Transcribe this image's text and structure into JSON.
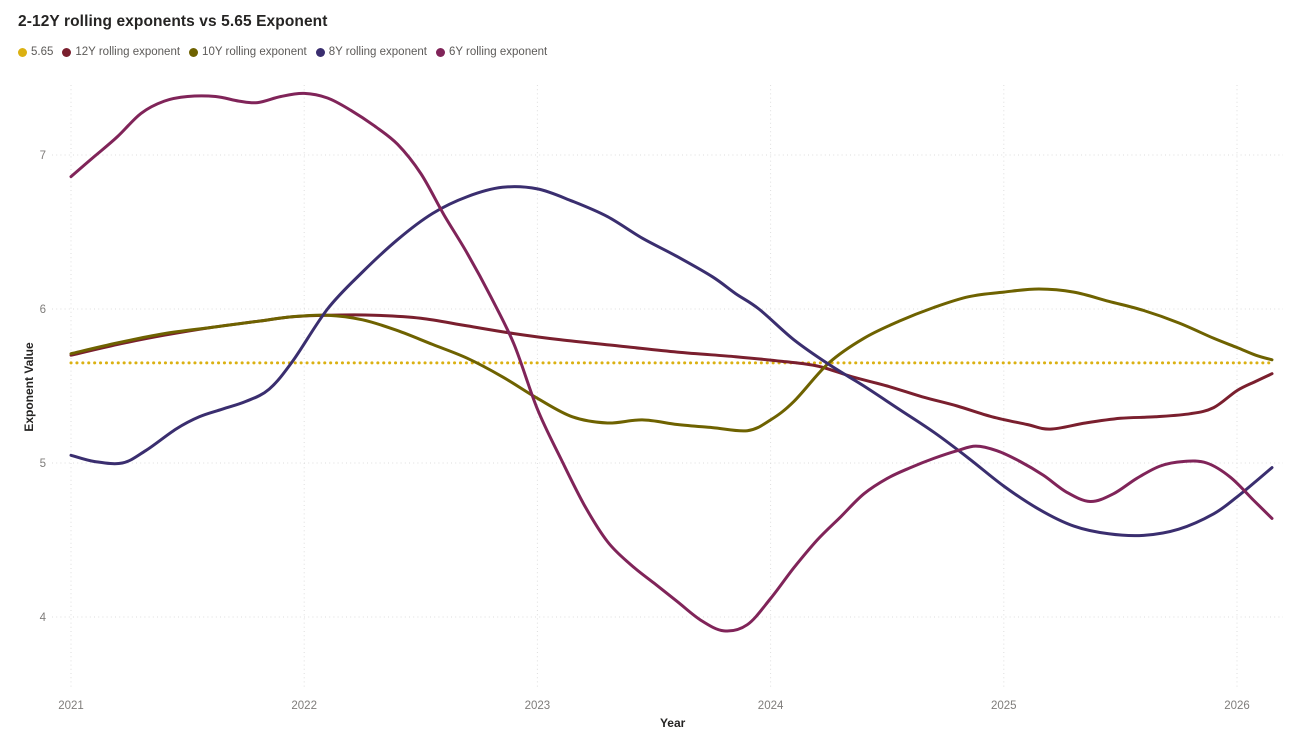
{
  "chart": {
    "title": "2-12Y rolling exponents vs 5.65 Exponent",
    "x_axis_title": "Year",
    "y_axis_title": "Exponent Value"
  },
  "chart_data": {
    "type": "line",
    "title": "2-12Y rolling exponents vs 5.65 Exponent",
    "xlabel": "Year",
    "ylabel": "Exponent Value",
    "xlim": [
      2021,
      2026.15
    ],
    "ylim": [
      3.54,
      7.45
    ],
    "x_ticks": [
      2021,
      2022,
      2023,
      2024,
      2025,
      2026
    ],
    "y_ticks": [
      4,
      5,
      6,
      7
    ],
    "grid": "dotted",
    "legend_position": "top-left",
    "series": [
      {
        "name": "5.65",
        "color": "#DBB112",
        "line_style": "dotted",
        "points": [
          [
            2021.0,
            5.65
          ],
          [
            2026.15,
            5.65
          ]
        ]
      },
      {
        "name": "12Y rolling exponent",
        "color": "#7A1F2E",
        "line_style": "solid",
        "points": [
          [
            2021.0,
            5.7
          ],
          [
            2021.2,
            5.77
          ],
          [
            2021.4,
            5.83
          ],
          [
            2021.6,
            5.88
          ],
          [
            2021.8,
            5.92
          ],
          [
            2021.95,
            5.95
          ],
          [
            2022.1,
            5.96
          ],
          [
            2022.3,
            5.96
          ],
          [
            2022.5,
            5.94
          ],
          [
            2022.7,
            5.89
          ],
          [
            2022.9,
            5.84
          ],
          [
            2023.1,
            5.8
          ],
          [
            2023.35,
            5.76
          ],
          [
            2023.6,
            5.72
          ],
          [
            2023.85,
            5.69
          ],
          [
            2024.05,
            5.66
          ],
          [
            2024.2,
            5.63
          ],
          [
            2024.35,
            5.56
          ],
          [
            2024.5,
            5.5
          ],
          [
            2024.65,
            5.43
          ],
          [
            2024.8,
            5.37
          ],
          [
            2024.95,
            5.3
          ],
          [
            2025.1,
            5.25
          ],
          [
            2025.2,
            5.22
          ],
          [
            2025.35,
            5.26
          ],
          [
            2025.5,
            5.29
          ],
          [
            2025.65,
            5.3
          ],
          [
            2025.8,
            5.32
          ],
          [
            2025.9,
            5.36
          ],
          [
            2026.0,
            5.47
          ],
          [
            2026.08,
            5.53
          ],
          [
            2026.15,
            5.58
          ]
        ]
      },
      {
        "name": "10Y rolling exponent",
        "color": "#6E6200",
        "line_style": "solid",
        "points": [
          [
            2021.0,
            5.71
          ],
          [
            2021.2,
            5.78
          ],
          [
            2021.4,
            5.84
          ],
          [
            2021.6,
            5.88
          ],
          [
            2021.8,
            5.92
          ],
          [
            2021.95,
            5.95
          ],
          [
            2022.1,
            5.96
          ],
          [
            2022.25,
            5.93
          ],
          [
            2022.4,
            5.86
          ],
          [
            2022.55,
            5.77
          ],
          [
            2022.7,
            5.68
          ],
          [
            2022.85,
            5.56
          ],
          [
            2023.0,
            5.42
          ],
          [
            2023.15,
            5.3
          ],
          [
            2023.3,
            5.26
          ],
          [
            2023.45,
            5.28
          ],
          [
            2023.6,
            5.25
          ],
          [
            2023.75,
            5.23
          ],
          [
            2023.9,
            5.21
          ],
          [
            2024.0,
            5.28
          ],
          [
            2024.1,
            5.4
          ],
          [
            2024.25,
            5.65
          ],
          [
            2024.4,
            5.81
          ],
          [
            2024.55,
            5.92
          ],
          [
            2024.7,
            6.01
          ],
          [
            2024.85,
            6.08
          ],
          [
            2025.0,
            6.11
          ],
          [
            2025.15,
            6.13
          ],
          [
            2025.3,
            6.11
          ],
          [
            2025.45,
            6.05
          ],
          [
            2025.6,
            5.99
          ],
          [
            2025.75,
            5.91
          ],
          [
            2025.9,
            5.81
          ],
          [
            2026.0,
            5.75
          ],
          [
            2026.08,
            5.7
          ],
          [
            2026.15,
            5.67
          ]
        ]
      },
      {
        "name": "8Y rolling exponent",
        "color": "#3A2E6F",
        "line_style": "solid",
        "points": [
          [
            2021.0,
            5.05
          ],
          [
            2021.1,
            5.01
          ],
          [
            2021.22,
            5.0
          ],
          [
            2021.32,
            5.08
          ],
          [
            2021.45,
            5.22
          ],
          [
            2021.55,
            5.3
          ],
          [
            2021.65,
            5.35
          ],
          [
            2021.75,
            5.4
          ],
          [
            2021.85,
            5.48
          ],
          [
            2021.95,
            5.66
          ],
          [
            2022.1,
            6.0
          ],
          [
            2022.25,
            6.24
          ],
          [
            2022.4,
            6.45
          ],
          [
            2022.55,
            6.62
          ],
          [
            2022.7,
            6.73
          ],
          [
            2022.85,
            6.79
          ],
          [
            2023.0,
            6.78
          ],
          [
            2023.15,
            6.7
          ],
          [
            2023.3,
            6.6
          ],
          [
            2023.45,
            6.46
          ],
          [
            2023.6,
            6.34
          ],
          [
            2023.75,
            6.21
          ],
          [
            2023.85,
            6.1
          ],
          [
            2023.95,
            6.0
          ],
          [
            2024.1,
            5.8
          ],
          [
            2024.25,
            5.64
          ],
          [
            2024.4,
            5.5
          ],
          [
            2024.55,
            5.35
          ],
          [
            2024.7,
            5.2
          ],
          [
            2024.85,
            5.03
          ],
          [
            2025.0,
            4.85
          ],
          [
            2025.15,
            4.7
          ],
          [
            2025.3,
            4.59
          ],
          [
            2025.45,
            4.54
          ],
          [
            2025.6,
            4.53
          ],
          [
            2025.75,
            4.57
          ],
          [
            2025.9,
            4.67
          ],
          [
            2026.0,
            4.78
          ],
          [
            2026.08,
            4.88
          ],
          [
            2026.15,
            4.97
          ]
        ]
      },
      {
        "name": "6Y rolling exponent",
        "color": "#802459",
        "line_style": "solid",
        "points": [
          [
            2021.0,
            6.86
          ],
          [
            2021.1,
            6.99
          ],
          [
            2021.2,
            7.12
          ],
          [
            2021.3,
            7.27
          ],
          [
            2021.4,
            7.35
          ],
          [
            2021.5,
            7.38
          ],
          [
            2021.62,
            7.38
          ],
          [
            2021.72,
            7.35
          ],
          [
            2021.8,
            7.34
          ],
          [
            2021.9,
            7.38
          ],
          [
            2022.0,
            7.4
          ],
          [
            2022.1,
            7.37
          ],
          [
            2022.2,
            7.29
          ],
          [
            2022.3,
            7.19
          ],
          [
            2022.4,
            7.07
          ],
          [
            2022.5,
            6.88
          ],
          [
            2022.6,
            6.61
          ],
          [
            2022.7,
            6.36
          ],
          [
            2022.8,
            6.08
          ],
          [
            2022.9,
            5.77
          ],
          [
            2023.0,
            5.35
          ],
          [
            2023.1,
            5.03
          ],
          [
            2023.2,
            4.73
          ],
          [
            2023.3,
            4.49
          ],
          [
            2023.4,
            4.34
          ],
          [
            2023.5,
            4.22
          ],
          [
            2023.6,
            4.1
          ],
          [
            2023.7,
            3.98
          ],
          [
            2023.8,
            3.91
          ],
          [
            2023.9,
            3.95
          ],
          [
            2024.0,
            4.12
          ],
          [
            2024.1,
            4.32
          ],
          [
            2024.2,
            4.5
          ],
          [
            2024.3,
            4.65
          ],
          [
            2024.4,
            4.8
          ],
          [
            2024.5,
            4.9
          ],
          [
            2024.6,
            4.97
          ],
          [
            2024.7,
            5.03
          ],
          [
            2024.8,
            5.08
          ],
          [
            2024.88,
            5.11
          ],
          [
            2024.97,
            5.08
          ],
          [
            2025.07,
            5.01
          ],
          [
            2025.17,
            4.92
          ],
          [
            2025.27,
            4.81
          ],
          [
            2025.37,
            4.75
          ],
          [
            2025.47,
            4.8
          ],
          [
            2025.57,
            4.9
          ],
          [
            2025.67,
            4.98
          ],
          [
            2025.77,
            5.01
          ],
          [
            2025.87,
            5.0
          ],
          [
            2025.97,
            4.91
          ],
          [
            2026.07,
            4.76
          ],
          [
            2026.15,
            4.64
          ]
        ]
      }
    ]
  }
}
